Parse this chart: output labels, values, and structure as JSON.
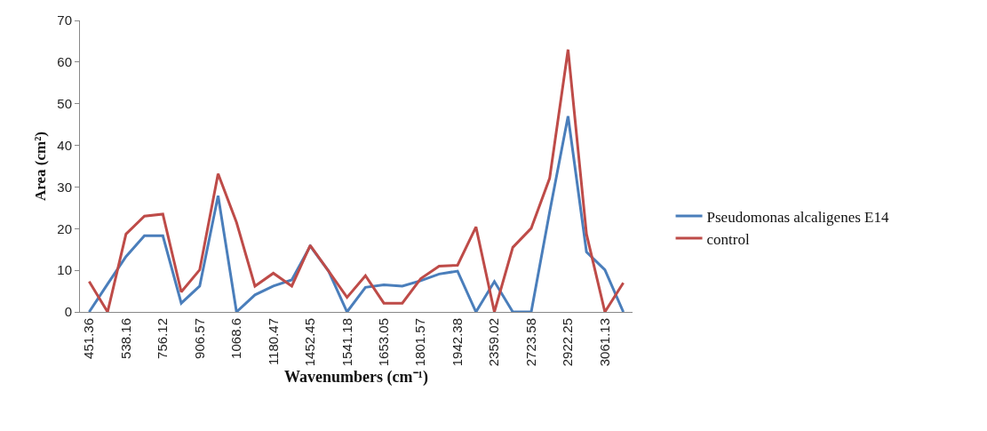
{
  "chart_data": {
    "type": "line",
    "xlabel": "Wavenumbers (cm⁻¹)",
    "ylabel": "Area (cm²)",
    "categories": [
      "451.36",
      null,
      "538.16",
      null,
      "756.12",
      null,
      "906.57",
      null,
      "1068.6",
      null,
      "1180.47",
      null,
      "1452.45",
      null,
      "1541.18",
      null,
      "1653.05",
      null,
      "1801.57",
      null,
      "1942.38",
      null,
      "2359.02",
      null,
      "2723.58",
      null,
      "2922.25",
      null,
      "3061.13",
      null
    ],
    "series": [
      {
        "name": "Pseudomonas alcaligenes E14",
        "color": "#4a7ebb",
        "values": [
          0,
          6.7,
          13.3,
          18.3,
          18.3,
          2.1,
          6.2,
          27.9,
          0,
          4.1,
          6.2,
          7.7,
          15.8,
          9.8,
          0,
          5.9,
          6.5,
          6.2,
          7.5,
          9.1,
          9.8,
          0,
          7.3,
          0,
          0,
          24,
          47,
          14.4,
          10.1,
          0
        ]
      },
      {
        "name": "control",
        "color": "#be4b48",
        "values": [
          7.3,
          0,
          18.7,
          23,
          23.5,
          4.8,
          10.1,
          33.2,
          21.5,
          6.2,
          9.3,
          6.2,
          16,
          9.8,
          3.5,
          8.7,
          2.1,
          2.1,
          8,
          11,
          11.2,
          20.4,
          0,
          15.5,
          20.1,
          32.1,
          63,
          18.7,
          0,
          7
        ]
      }
    ],
    "ylim": [
      0,
      70
    ],
    "yticks": [
      0,
      10,
      20,
      30,
      40,
      50,
      60,
      70
    ],
    "grid": false,
    "legend": "right",
    "marker": "none",
    "line_style": "solid"
  }
}
